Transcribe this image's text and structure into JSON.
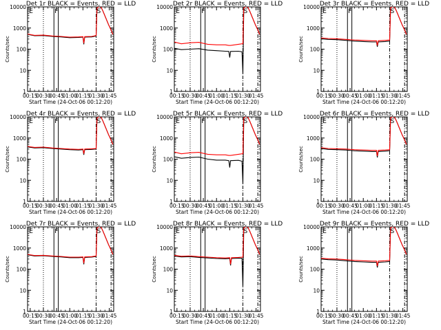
{
  "common": {
    "ylabel": "Counts/sec",
    "xlabel": "Start Time (24-Oct-06 00:12:20)",
    "x_tick_labels": [
      "00:15",
      "00:30",
      "00:45",
      "01:00",
      "01:15",
      "01:30",
      "01:45"
    ],
    "y_tick_labels": [
      "1",
      "10",
      "100",
      "1000",
      "10000"
    ],
    "series_colors": {
      "events": "#000000",
      "lld": "#ff0000"
    }
  },
  "chart_data": [
    {
      "type": "line",
      "title": "Det 1r BLACK = Events, RED = LLD",
      "markers": [
        "E",
        "F",
        "S"
      ],
      "xlim": [
        "00:12",
        "01:50"
      ],
      "ylim": [
        1,
        10000
      ],
      "yscale": "log",
      "series": [
        {
          "key": "events",
          "x": [
            "00:12",
            "00:20",
            "00:30",
            "00:40",
            "00:50",
            "01:00",
            "01:10",
            "01:15",
            "01:16",
            "01:17",
            "01:25",
            "01:30",
            "01:31",
            "01:33",
            "01:35",
            "01:38",
            "01:41",
            "01:44",
            "01:47",
            "01:49"
          ],
          "values": [
            500,
            430,
            440,
            400,
            380,
            350,
            360,
            370,
            170,
            370,
            380,
            420,
            9000,
            10000,
            11000,
            6000,
            3000,
            1500,
            800,
            500
          ]
        },
        {
          "key": "lld",
          "x": [
            "00:12",
            "00:20",
            "00:30",
            "00:40",
            "00:50",
            "01:00",
            "01:10",
            "01:15",
            "01:16",
            "01:17",
            "01:25",
            "01:30",
            "01:31",
            "01:33",
            "01:35",
            "01:38",
            "01:41",
            "01:44",
            "01:47",
            "01:49"
          ],
          "values": [
            520,
            450,
            460,
            420,
            400,
            370,
            380,
            390,
            190,
            390,
            400,
            440,
            9000,
            10000,
            11000,
            6000,
            3000,
            1500,
            800,
            500
          ]
        }
      ]
    },
    {
      "type": "line",
      "title": "Det 2r BLACK = Events, RED = LLD",
      "markers": [
        "E",
        "F",
        "S"
      ],
      "xlim": [
        "00:12",
        "01:50"
      ],
      "ylim": [
        1,
        10000
      ],
      "yscale": "log",
      "series": [
        {
          "key": "events",
          "x": [
            "00:12",
            "00:20",
            "00:30",
            "00:40",
            "00:50",
            "01:00",
            "01:10",
            "01:14",
            "01:15",
            "01:16",
            "01:25",
            "01:29",
            "01:30",
            "01:31",
            "01:33",
            "01:35",
            "01:38",
            "01:41",
            "01:44",
            "01:47",
            "01:49"
          ],
          "values": [
            110,
            95,
            100,
            105,
            90,
            85,
            80,
            78,
            40,
            78,
            80,
            75,
            7,
            9000,
            10000,
            11000,
            6000,
            3000,
            1500,
            800,
            500
          ]
        },
        {
          "key": "lld",
          "x": [
            "00:12",
            "00:20",
            "00:30",
            "00:40",
            "00:50",
            "01:00",
            "01:10",
            "01:14",
            "01:15",
            "01:16",
            "01:25",
            "01:29",
            "01:30",
            "01:31",
            "01:33",
            "01:35",
            "01:38",
            "01:41",
            "01:44",
            "01:47",
            "01:49"
          ],
          "values": [
            220,
            180,
            200,
            210,
            170,
            160,
            160,
            150,
            150,
            150,
            170,
            180,
            180,
            9000,
            10000,
            11000,
            6000,
            3000,
            1500,
            800,
            500
          ]
        }
      ]
    },
    {
      "type": "line",
      "title": "Det 3r BLACK = Events, RED = LLD",
      "markers": [
        "E",
        "F",
        "S"
      ],
      "xlim": [
        "00:12",
        "01:50"
      ],
      "ylim": [
        1,
        10000
      ],
      "yscale": "log",
      "series": [
        {
          "key": "events",
          "x": [
            "00:12",
            "00:20",
            "00:30",
            "00:40",
            "00:50",
            "01:00",
            "01:10",
            "01:15",
            "01:16",
            "01:17",
            "01:25",
            "01:30",
            "01:31",
            "01:33",
            "01:35",
            "01:38",
            "01:41",
            "01:44",
            "01:47",
            "01:49"
          ],
          "values": [
            310,
            290,
            280,
            260,
            240,
            230,
            220,
            220,
            130,
            220,
            230,
            240,
            9000,
            10000,
            11000,
            6000,
            3000,
            1500,
            800,
            500
          ]
        },
        {
          "key": "lld",
          "x": [
            "00:12",
            "00:20",
            "00:30",
            "00:40",
            "00:50",
            "01:00",
            "01:10",
            "01:15",
            "01:16",
            "01:17",
            "01:25",
            "01:30",
            "01:31",
            "01:33",
            "01:35",
            "01:38",
            "01:41",
            "01:44",
            "01:47",
            "01:49"
          ],
          "values": [
            340,
            320,
            310,
            290,
            270,
            260,
            250,
            250,
            150,
            250,
            260,
            270,
            9000,
            10000,
            11000,
            6000,
            3000,
            1500,
            800,
            500
          ]
        }
      ]
    },
    {
      "type": "line",
      "title": "Det 4r BLACK = Events, RED = LLD",
      "markers": [
        "E",
        "F",
        "S"
      ],
      "xlim": [
        "00:12",
        "01:50"
      ],
      "ylim": [
        1,
        10000
      ],
      "yscale": "log",
      "series": [
        {
          "key": "events",
          "x": [
            "00:12",
            "00:20",
            "00:30",
            "00:40",
            "00:50",
            "01:00",
            "01:10",
            "01:15",
            "01:16",
            "01:17",
            "01:25",
            "01:30",
            "01:31",
            "01:33",
            "01:35",
            "01:38",
            "01:41",
            "01:44",
            "01:47",
            "01:49"
          ],
          "values": [
            380,
            340,
            350,
            320,
            300,
            280,
            270,
            280,
            160,
            280,
            290,
            300,
            9000,
            10000,
            11000,
            6000,
            3000,
            1500,
            800,
            500
          ]
        },
        {
          "key": "lld",
          "x": [
            "00:12",
            "00:20",
            "00:30",
            "00:40",
            "00:50",
            "01:00",
            "01:10",
            "01:15",
            "01:16",
            "01:17",
            "01:25",
            "01:30",
            "01:31",
            "01:33",
            "01:35",
            "01:38",
            "01:41",
            "01:44",
            "01:47",
            "01:49"
          ],
          "values": [
            400,
            360,
            370,
            340,
            320,
            300,
            290,
            300,
            180,
            300,
            310,
            320,
            9000,
            10000,
            11000,
            6000,
            3000,
            1500,
            800,
            500
          ]
        }
      ]
    },
    {
      "type": "line",
      "title": "Det 5r BLACK = Events, RED = LLD",
      "markers": [
        "E",
        "F",
        "S"
      ],
      "xlim": [
        "00:12",
        "01:50"
      ],
      "ylim": [
        1,
        10000
      ],
      "yscale": "log",
      "series": [
        {
          "key": "events",
          "x": [
            "00:12",
            "00:20",
            "00:30",
            "00:40",
            "00:50",
            "01:00",
            "01:10",
            "01:14",
            "01:15",
            "01:16",
            "01:25",
            "01:29",
            "01:30",
            "01:31",
            "01:33",
            "01:35",
            "01:38",
            "01:41",
            "01:44",
            "01:47",
            "01:49"
          ],
          "values": [
            130,
            110,
            120,
            125,
            100,
            90,
            90,
            85,
            40,
            85,
            88,
            80,
            7,
            9000,
            10000,
            11000,
            6000,
            3000,
            1500,
            800,
            500
          ]
        },
        {
          "key": "lld",
          "x": [
            "00:12",
            "00:20",
            "00:30",
            "00:40",
            "00:50",
            "01:00",
            "01:10",
            "01:14",
            "01:15",
            "01:16",
            "01:25",
            "01:29",
            "01:30",
            "01:31",
            "01:33",
            "01:35",
            "01:38",
            "01:41",
            "01:44",
            "01:47",
            "01:49"
          ],
          "values": [
            220,
            180,
            200,
            210,
            170,
            160,
            160,
            150,
            150,
            150,
            170,
            180,
            180,
            9000,
            10000,
            11000,
            6000,
            3000,
            1500,
            800,
            500
          ]
        }
      ]
    },
    {
      "type": "line",
      "title": "Det 6r BLACK = Events, RED = LLD",
      "markers": [
        "E",
        "F",
        "S"
      ],
      "xlim": [
        "00:12",
        "01:50"
      ],
      "ylim": [
        1,
        10000
      ],
      "yscale": "log",
      "series": [
        {
          "key": "events",
          "x": [
            "00:12",
            "00:20",
            "00:30",
            "00:40",
            "00:50",
            "01:00",
            "01:10",
            "01:15",
            "01:16",
            "01:17",
            "01:25",
            "01:30",
            "01:31",
            "01:33",
            "01:35",
            "01:38",
            "01:41",
            "01:44",
            "01:47",
            "01:49"
          ],
          "values": [
            320,
            290,
            280,
            270,
            250,
            240,
            230,
            230,
            120,
            230,
            240,
            250,
            9000,
            10000,
            11000,
            6000,
            3000,
            1500,
            800,
            500
          ]
        },
        {
          "key": "lld",
          "x": [
            "00:12",
            "00:20",
            "00:30",
            "00:40",
            "00:50",
            "01:00",
            "01:10",
            "01:15",
            "01:16",
            "01:17",
            "01:25",
            "01:30",
            "01:31",
            "01:33",
            "01:35",
            "01:38",
            "01:41",
            "01:44",
            "01:47",
            "01:49"
          ],
          "values": [
            350,
            320,
            310,
            300,
            280,
            270,
            260,
            260,
            140,
            260,
            270,
            280,
            9000,
            10000,
            11000,
            6000,
            3000,
            1500,
            800,
            500
          ]
        }
      ]
    },
    {
      "type": "line",
      "title": "Det 7r BLACK = Events, RED = LLD",
      "markers": [
        "E",
        "F",
        "S"
      ],
      "xlim": [
        "00:12",
        "01:50"
      ],
      "ylim": [
        1,
        10000
      ],
      "yscale": "log",
      "series": [
        {
          "key": "events",
          "x": [
            "00:12",
            "00:20",
            "00:30",
            "00:40",
            "00:50",
            "01:00",
            "01:10",
            "01:15",
            "01:16",
            "01:17",
            "01:25",
            "01:30",
            "01:31",
            "01:33",
            "01:35",
            "01:38",
            "01:41",
            "01:44",
            "01:47",
            "01:49"
          ],
          "values": [
            480,
            420,
            430,
            400,
            380,
            350,
            350,
            360,
            170,
            360,
            370,
            400,
            9000,
            10000,
            11000,
            6000,
            3000,
            1500,
            800,
            500
          ]
        },
        {
          "key": "lld",
          "x": [
            "00:12",
            "00:20",
            "00:30",
            "00:40",
            "00:50",
            "01:00",
            "01:10",
            "01:15",
            "01:16",
            "01:17",
            "01:25",
            "01:30",
            "01:31",
            "01:33",
            "01:35",
            "01:38",
            "01:41",
            "01:44",
            "01:47",
            "01:49"
          ],
          "values": [
            500,
            440,
            450,
            420,
            400,
            370,
            370,
            380,
            190,
            380,
            390,
            420,
            9000,
            10000,
            11000,
            6000,
            3000,
            1500,
            800,
            500
          ]
        }
      ]
    },
    {
      "type": "line",
      "title": "Det 8r BLACK = Events, RED = LLD",
      "markers": [
        "E",
        "F",
        "S"
      ],
      "xlim": [
        "00:12",
        "01:50"
      ],
      "ylim": [
        1,
        10000
      ],
      "yscale": "log",
      "series": [
        {
          "key": "events",
          "x": [
            "00:12",
            "00:20",
            "00:30",
            "00:40",
            "00:50",
            "01:00",
            "01:10",
            "01:15",
            "01:16",
            "01:17",
            "01:25",
            "01:29",
            "01:30",
            "01:31",
            "01:33",
            "01:35",
            "01:38",
            "01:41",
            "01:44",
            "01:47",
            "01:49"
          ],
          "values": [
            420,
            380,
            390,
            360,
            340,
            320,
            310,
            320,
            150,
            320,
            330,
            330,
            15,
            9000,
            10000,
            11000,
            6000,
            3000,
            1500,
            800,
            500
          ]
        },
        {
          "key": "lld",
          "x": [
            "00:12",
            "00:20",
            "00:30",
            "00:40",
            "00:50",
            "01:00",
            "01:10",
            "01:15",
            "01:16",
            "01:17",
            "01:25",
            "01:29",
            "01:30",
            "01:31",
            "01:33",
            "01:35",
            "01:38",
            "01:41",
            "01:44",
            "01:47",
            "01:49"
          ],
          "values": [
            450,
            410,
            420,
            390,
            370,
            350,
            340,
            350,
            170,
            350,
            360,
            370,
            370,
            9000,
            10000,
            11000,
            6000,
            3000,
            1500,
            800,
            500
          ]
        }
      ]
    },
    {
      "type": "line",
      "title": "Det 9r BLACK = Events, RED = LLD",
      "markers": [
        "E",
        "F",
        "S"
      ],
      "xlim": [
        "00:12",
        "01:50"
      ],
      "ylim": [
        1,
        10000
      ],
      "yscale": "log",
      "series": [
        {
          "key": "events",
          "x": [
            "00:12",
            "00:20",
            "00:30",
            "00:40",
            "00:50",
            "01:00",
            "01:10",
            "01:15",
            "01:16",
            "01:17",
            "01:25",
            "01:30",
            "01:31",
            "01:33",
            "01:35",
            "01:38",
            "01:41",
            "01:44",
            "01:47",
            "01:49"
          ],
          "values": [
            300,
            280,
            270,
            250,
            230,
            220,
            210,
            210,
            120,
            210,
            220,
            230,
            9000,
            10000,
            11000,
            6000,
            3000,
            1500,
            800,
            500
          ]
        },
        {
          "key": "lld",
          "x": [
            "00:12",
            "00:20",
            "00:30",
            "00:40",
            "00:50",
            "01:00",
            "01:10",
            "01:15",
            "01:16",
            "01:17",
            "01:25",
            "01:30",
            "01:31",
            "01:33",
            "01:35",
            "01:38",
            "01:41",
            "01:44",
            "01:47",
            "01:49"
          ],
          "values": [
            330,
            310,
            300,
            280,
            260,
            250,
            240,
            240,
            140,
            240,
            250,
            260,
            9000,
            10000,
            11000,
            6000,
            3000,
            1500,
            800,
            500
          ]
        }
      ]
    }
  ]
}
